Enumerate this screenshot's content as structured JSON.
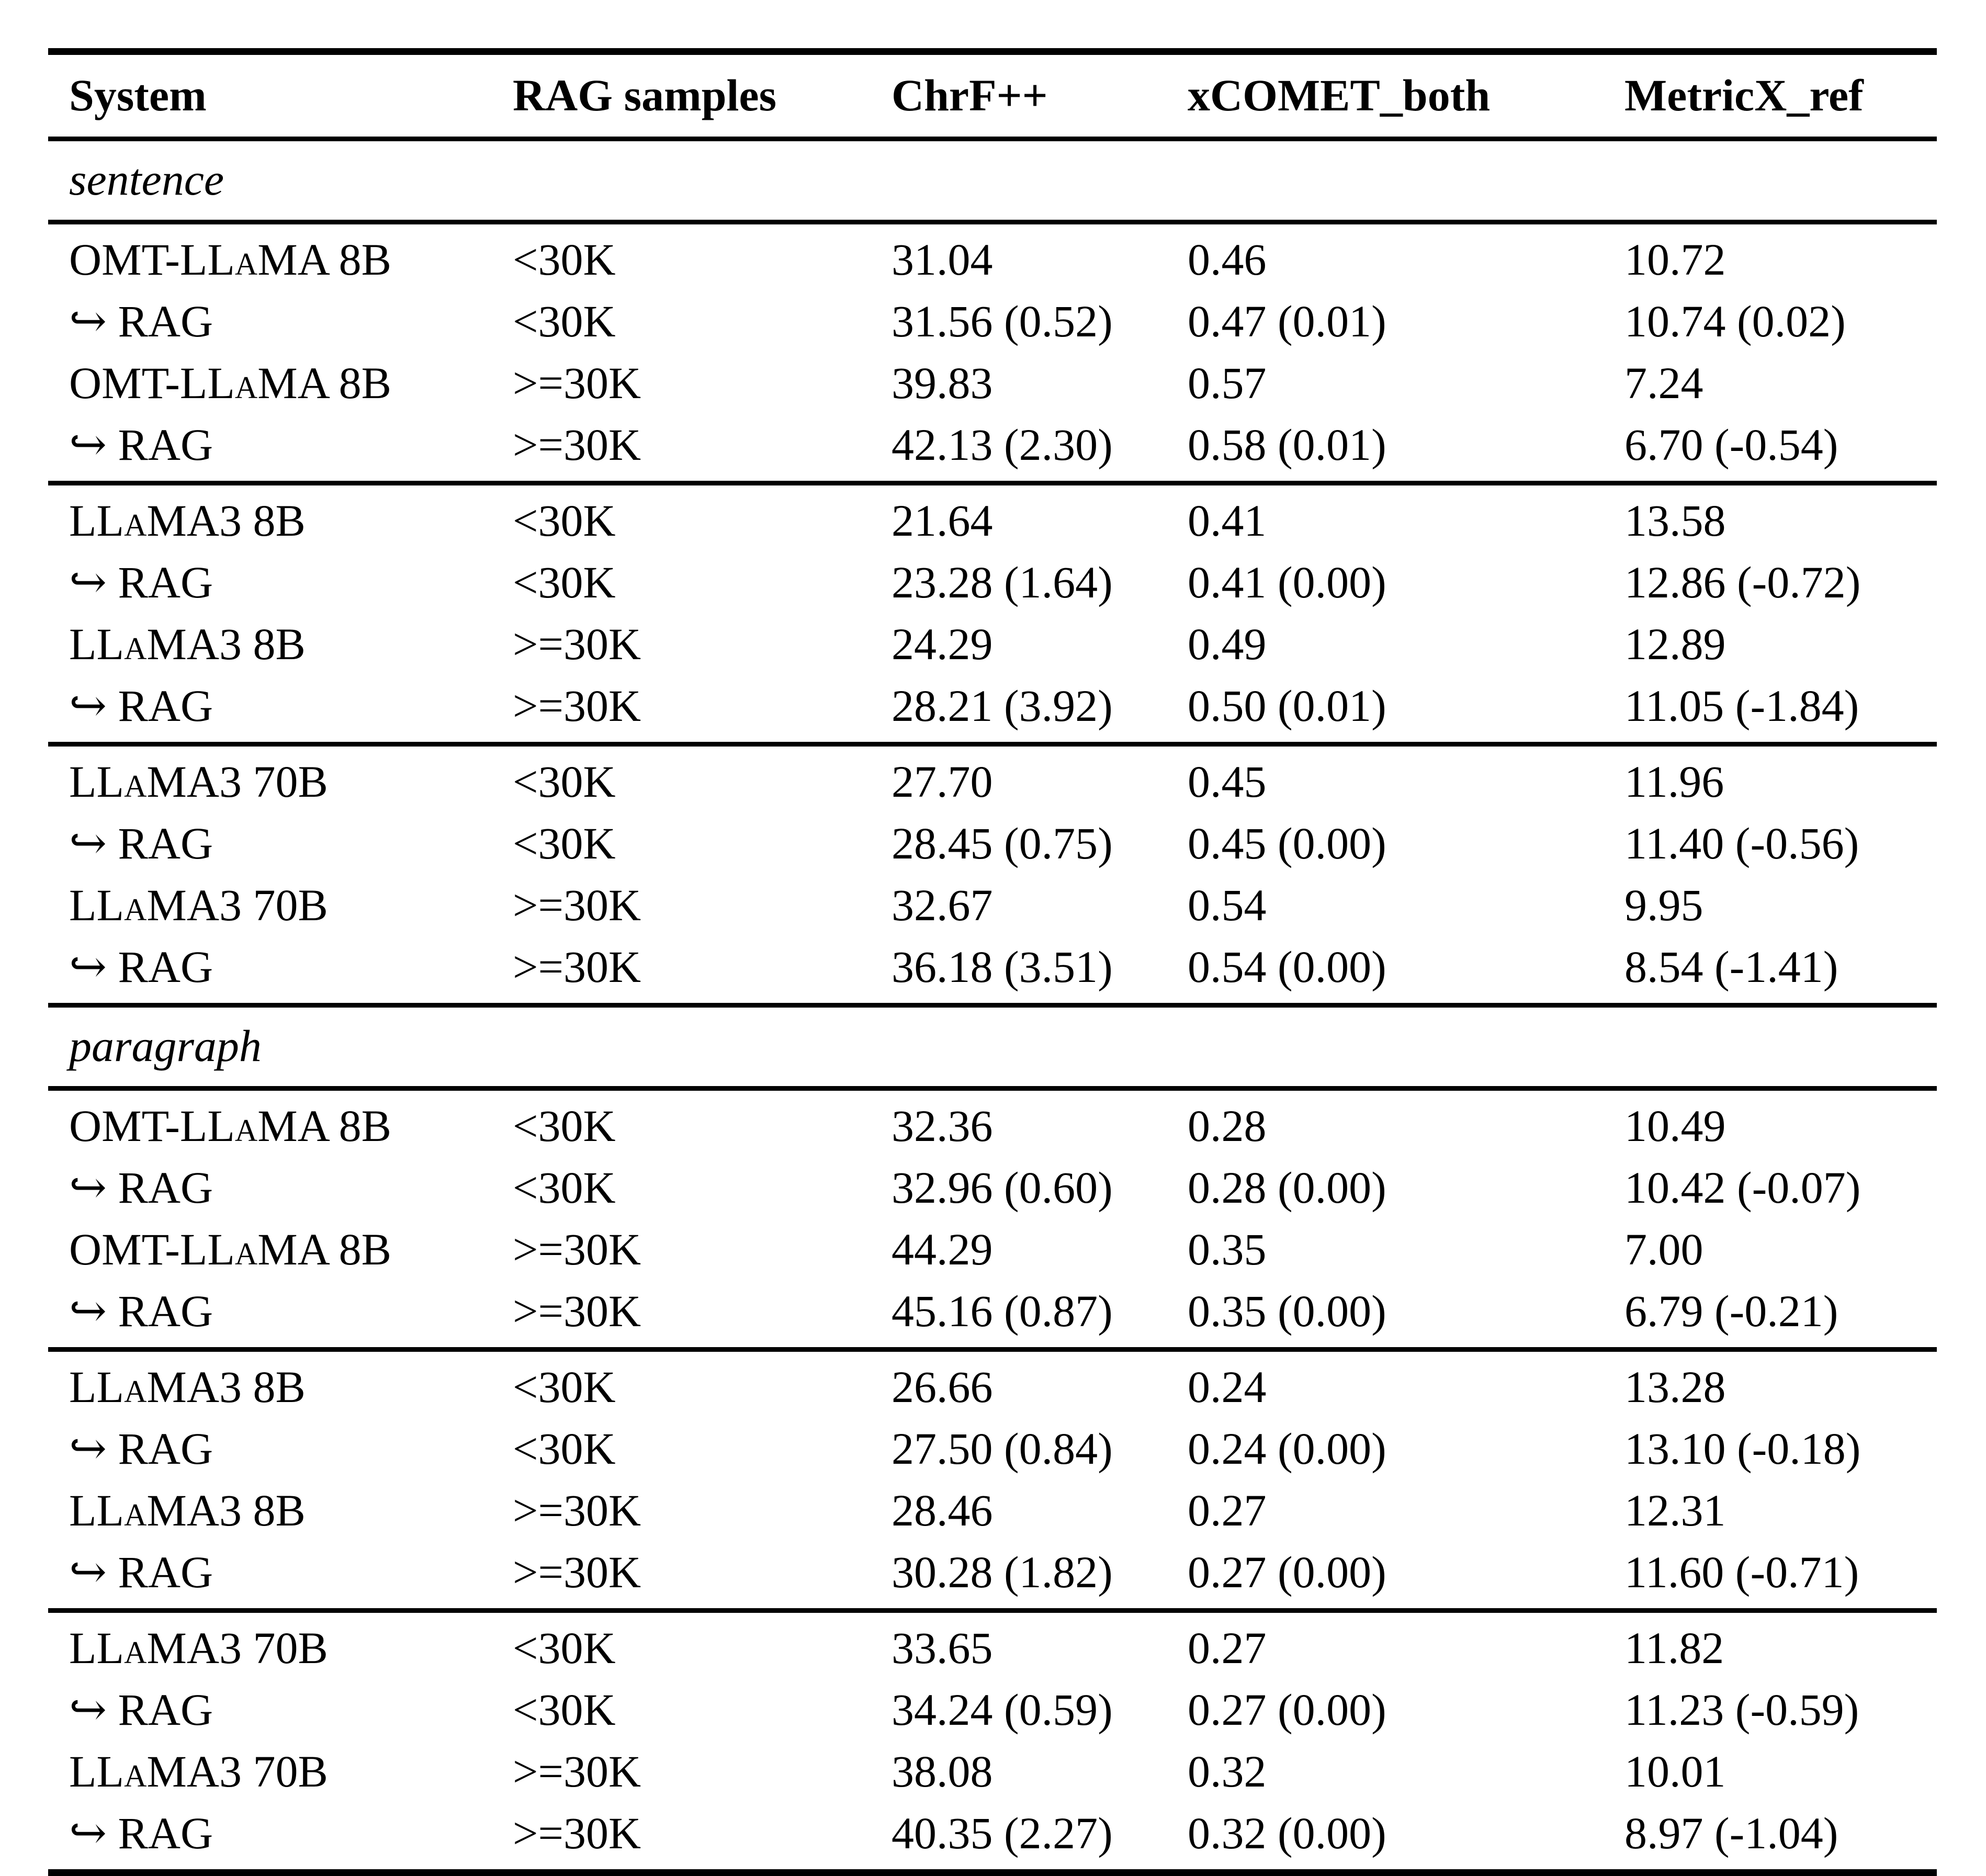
{
  "header": {
    "system": "System",
    "rag": "RAG samples",
    "chrf": "ChrF++",
    "xcomet": "xCOMET_both",
    "metricx": "MetricX_ref"
  },
  "sections": [
    {
      "label": "sentence",
      "rows": [
        {
          "sys": "OMT-LLaMA 8B",
          "rag": "<30K",
          "chrf": "31.04",
          "xcomet": "0.46",
          "metricx": "10.72"
        },
        {
          "sys": "↪ RAG",
          "rag": "<30K",
          "chrf": "31.56 (0.52)",
          "xcomet": "0.47 (0.01)",
          "metricx": "10.74 (0.02)"
        },
        {
          "sys": "OMT-LLaMA 8B",
          "rag": ">=30K",
          "chrf": "39.83",
          "xcomet": "0.57",
          "metricx": "7.24"
        },
        {
          "sys": "↪ RAG",
          "rag": ">=30K",
          "chrf": "42.13 (2.30)",
          "xcomet": "0.58 (0.01)",
          "metricx": "6.70 (-0.54)"
        },
        {
          "sys": "LLaMA3 8B",
          "rag": "<30K",
          "chrf": "21.64",
          "xcomet": "0.41",
          "metricx": "13.58"
        },
        {
          "sys": "↪ RAG",
          "rag": "<30K",
          "chrf": "23.28 (1.64)",
          "xcomet": "0.41 (0.00)",
          "metricx": "12.86 (-0.72)"
        },
        {
          "sys": "LLaMA3 8B",
          "rag": ">=30K",
          "chrf": "24.29",
          "xcomet": "0.49",
          "metricx": "12.89"
        },
        {
          "sys": "↪ RAG",
          "rag": ">=30K",
          "chrf": "28.21 (3.92)",
          "xcomet": "0.50 (0.01)",
          "metricx": "11.05 (-1.84)"
        },
        {
          "sys": "LLaMA3 70B",
          "rag": "<30K",
          "chrf": "27.70",
          "xcomet": "0.45",
          "metricx": "11.96"
        },
        {
          "sys": "↪ RAG",
          "rag": "<30K",
          "chrf": "28.45 (0.75)",
          "xcomet": "0.45 (0.00)",
          "metricx": "11.40 (-0.56)"
        },
        {
          "sys": "LLaMA3 70B",
          "rag": ">=30K",
          "chrf": "32.67",
          "xcomet": "0.54",
          "metricx": "9.95"
        },
        {
          "sys": "↪ RAG",
          "rag": ">=30K",
          "chrf": "36.18 (3.51)",
          "xcomet": "0.54 (0.00)",
          "metricx": "8.54 (-1.41)"
        }
      ]
    },
    {
      "label": "paragraph",
      "rows": [
        {
          "sys": "OMT-LLaMA 8B",
          "rag": "<30K",
          "chrf": "32.36",
          "xcomet": "0.28",
          "metricx": "10.49"
        },
        {
          "sys": "↪ RAG",
          "rag": "<30K",
          "chrf": "32.96 (0.60)",
          "xcomet": "0.28 (0.00)",
          "metricx": "10.42 (-0.07)"
        },
        {
          "sys": "OMT-LLaMA 8B",
          "rag": ">=30K",
          "chrf": "44.29",
          "xcomet": "0.35",
          "metricx": "7.00"
        },
        {
          "sys": "↪ RAG",
          "rag": ">=30K",
          "chrf": "45.16 (0.87)",
          "xcomet": "0.35 (0.00)",
          "metricx": "6.79 (-0.21)"
        },
        {
          "sys": "LLaMA3 8B",
          "rag": "<30K",
          "chrf": "26.66",
          "xcomet": "0.24",
          "metricx": "13.28"
        },
        {
          "sys": "↪ RAG",
          "rag": "<30K",
          "chrf": "27.50 (0.84)",
          "xcomet": "0.24 (0.00)",
          "metricx": "13.10 (-0.18)"
        },
        {
          "sys": "LLaMA3 8B",
          "rag": ">=30K",
          "chrf": "28.46",
          "xcomet": "0.27",
          "metricx": "12.31"
        },
        {
          "sys": "↪ RAG",
          "rag": ">=30K",
          "chrf": "30.28 (1.82)",
          "xcomet": "0.27 (0.00)",
          "metricx": "11.60 (-0.71)"
        },
        {
          "sys": "LLaMA3 70B",
          "rag": "<30K",
          "chrf": "33.65",
          "xcomet": "0.27",
          "metricx": "11.82"
        },
        {
          "sys": "↪ RAG",
          "rag": "<30K",
          "chrf": "34.24 (0.59)",
          "xcomet": "0.27 (0.00)",
          "metricx": "11.23 (-0.59)"
        },
        {
          "sys": "LLaMA3 70B",
          "rag": ">=30K",
          "chrf": "38.08",
          "xcomet": "0.32",
          "metricx": "10.01"
        },
        {
          "sys": "↪ RAG",
          "rag": ">=30K",
          "chrf": "40.35 (2.27)",
          "xcomet": "0.32 (0.00)",
          "metricx": "8.97 (-1.04)"
        }
      ]
    }
  ]
}
